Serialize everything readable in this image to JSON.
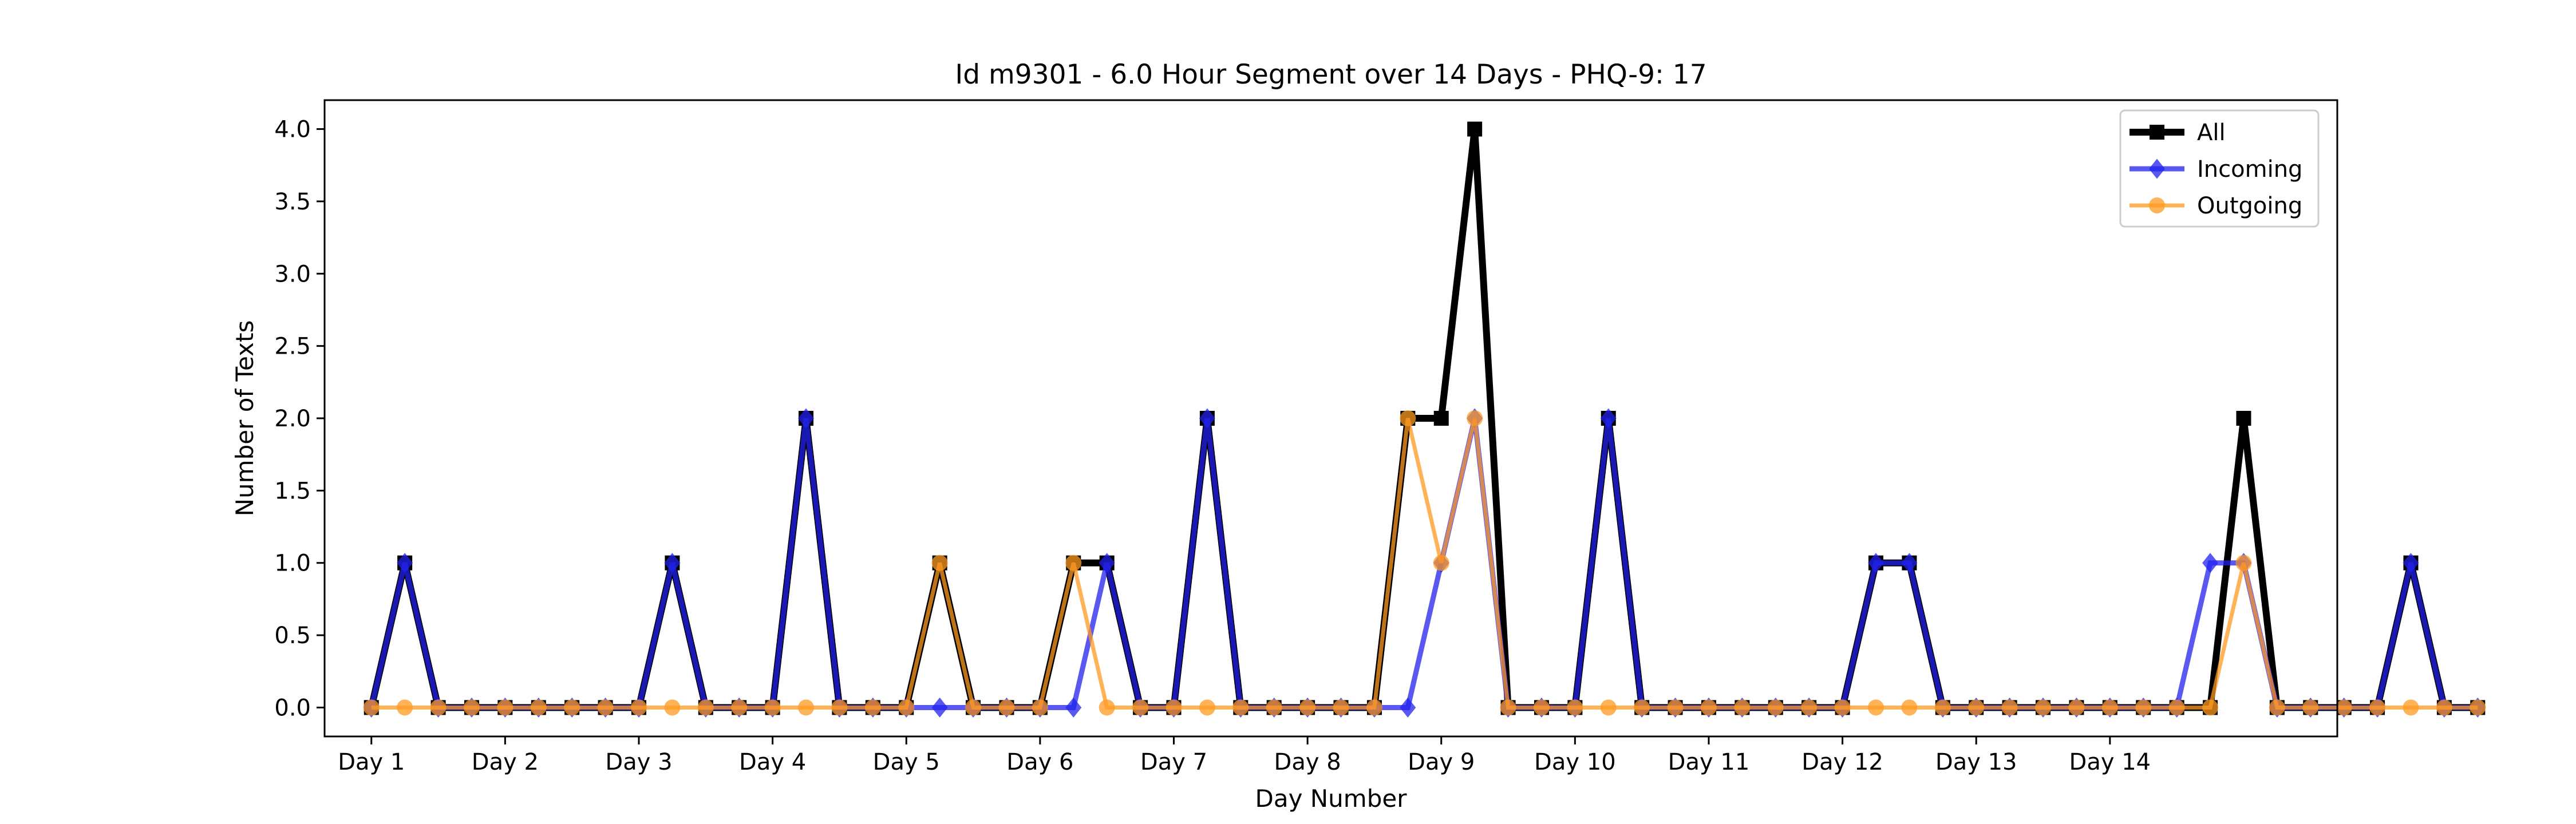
{
  "chart_data": {
    "type": "line",
    "title": "Id m9301 - 6.0 Hour Segment over 14 Days - PHQ-9: 17",
    "xlabel": "Day Number",
    "ylabel": "Number of Texts",
    "ylim": [
      -0.2,
      4.2
    ],
    "xlim": [
      -1.4,
      58.8
    ],
    "yticks": [
      "0.0",
      "0.5",
      "1.0",
      "1.5",
      "2.0",
      "2.5",
      "3.0",
      "3.5",
      "4.0"
    ],
    "x_tick_labels": [
      "Day 1",
      "Day 2",
      "Day 3",
      "Day 4",
      "Day 5",
      "Day 6",
      "Day 7",
      "Day 8",
      "Day 9",
      "Day 10",
      "Day 11",
      "Day 12",
      "Day 13",
      "Day 14"
    ],
    "x_tick_positions": [
      0,
      4,
      8,
      12,
      16,
      20,
      24,
      28,
      32,
      36,
      40,
      44,
      48,
      52
    ],
    "grid": false,
    "legend_position": "top-right",
    "series": [
      {
        "name": "All",
        "color": "#000000",
        "marker": "square",
        "values": [
          0,
          1,
          0,
          0,
          0,
          0,
          0,
          0,
          0,
          1,
          0,
          0,
          0,
          2,
          0,
          0,
          0,
          1,
          0,
          0,
          0,
          1,
          1,
          0,
          0,
          2,
          0,
          0,
          0,
          0,
          0,
          2,
          2,
          4,
          0,
          0,
          0,
          2,
          0,
          0,
          0,
          0,
          0,
          0,
          0,
          1,
          1,
          0,
          0,
          0,
          0,
          0,
          0,
          0,
          0,
          0,
          2,
          0,
          0,
          0,
          0,
          1,
          0,
          0
        ]
      },
      {
        "name": "Incoming",
        "color": "#2222ee",
        "marker": "diamond",
        "values": [
          0,
          1,
          0,
          0,
          0,
          0,
          0,
          0,
          0,
          1,
          0,
          0,
          0,
          2,
          0,
          0,
          0,
          0,
          0,
          0,
          0,
          0,
          1,
          0,
          0,
          2,
          0,
          0,
          0,
          0,
          0,
          0,
          1,
          2,
          0,
          0,
          0,
          2,
          0,
          0,
          0,
          0,
          0,
          0,
          0,
          1,
          1,
          0,
          0,
          0,
          0,
          0,
          0,
          0,
          0,
          1,
          1,
          0,
          0,
          0,
          0,
          1,
          0,
          0
        ]
      },
      {
        "name": "Outgoing",
        "color": "#ff9922",
        "marker": "circle",
        "values": [
          0,
          0,
          0,
          0,
          0,
          0,
          0,
          0,
          0,
          0,
          0,
          0,
          0,
          0,
          0,
          0,
          0,
          1,
          0,
          0,
          0,
          1,
          0,
          0,
          0,
          0,
          0,
          0,
          0,
          0,
          0,
          2,
          1,
          2,
          0,
          0,
          0,
          0,
          0,
          0,
          0,
          0,
          0,
          0,
          0,
          0,
          0,
          0,
          0,
          0,
          0,
          0,
          0,
          0,
          0,
          0,
          1,
          0,
          0,
          0,
          0,
          0,
          0,
          0
        ]
      }
    ]
  }
}
